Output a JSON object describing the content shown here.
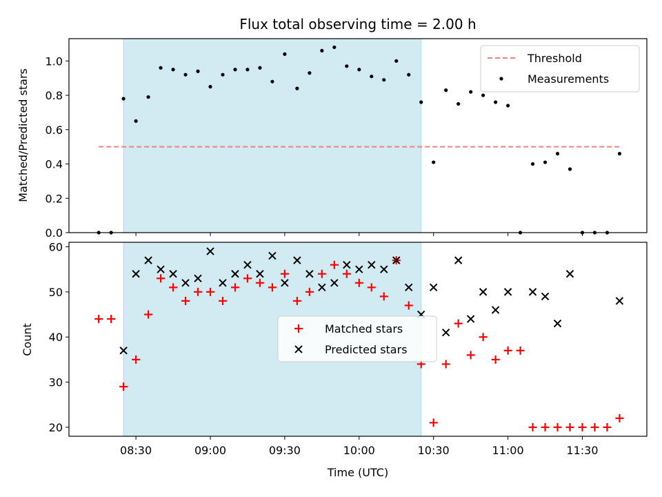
{
  "chart_data": [
    {
      "id": "top",
      "type": "scatter",
      "title": "Flux total observing time = 2.00 h",
      "ylabel": "Matched/Predicted stars",
      "xlabel": "",
      "x_unit": "minutes since 00:00 UTC",
      "xlim": [
        483,
        716
      ],
      "ylim": [
        0,
        1.13
      ],
      "yticks": [
        0.0,
        0.2,
        0.4,
        0.6,
        0.8,
        1.0
      ],
      "ytick_labels": [
        "0.0",
        "0.2",
        "0.4",
        "0.6",
        "0.8",
        "1.0"
      ],
      "xticks": [
        510,
        540,
        570,
        600,
        630,
        660,
        690
      ],
      "shaded_span": [
        505,
        625
      ],
      "colors": {
        "shade": "#add8e6",
        "threshold": "#f08080",
        "points": "#000000"
      },
      "legend": {
        "placement": "top-right",
        "threshold_label": "Threshold",
        "measurements_label": "Measurements"
      },
      "threshold": {
        "name": "Threshold",
        "y": 0.5,
        "x_range": [
          495,
          705
        ]
      },
      "series": [
        {
          "name": "Measurements",
          "x": [
            495,
            500,
            505,
            510,
            515,
            520,
            525,
            530,
            535,
            540,
            545,
            550,
            555,
            560,
            565,
            570,
            575,
            580,
            585,
            590,
            595,
            600,
            605,
            610,
            615,
            620,
            625,
            630,
            635,
            640,
            645,
            650,
            655,
            660,
            665,
            670,
            675,
            680,
            685,
            690,
            695,
            700,
            705
          ],
          "y": [
            0.0,
            0.0,
            0.78,
            0.65,
            0.79,
            0.96,
            0.95,
            0.92,
            0.94,
            0.85,
            0.92,
            0.95,
            0.95,
            0.96,
            0.88,
            1.04,
            0.84,
            0.93,
            1.06,
            1.08,
            0.97,
            0.95,
            0.91,
            0.89,
            1.0,
            0.92,
            0.76,
            0.41,
            0.83,
            0.75,
            0.82,
            0.8,
            0.76,
            0.74,
            0.0,
            0.4,
            0.41,
            0.46,
            0.37,
            0.0,
            0.0,
            0.0,
            0.46
          ]
        }
      ]
    },
    {
      "id": "bottom",
      "type": "scatter",
      "title": "",
      "ylabel": "Count",
      "xlabel": "Time (UTC)",
      "x_unit": "minutes since 00:00 UTC",
      "xlim": [
        483,
        716
      ],
      "ylim": [
        18,
        61
      ],
      "yticks": [
        20,
        30,
        40,
        50,
        60
      ],
      "ytick_labels": [
        "20",
        "30",
        "40",
        "50",
        "60"
      ],
      "xticks": [
        510,
        540,
        570,
        600,
        630,
        660,
        690
      ],
      "xtick_labels": [
        "08:30",
        "09:00",
        "09:30",
        "10:00",
        "10:30",
        "11:00",
        "11:30"
      ],
      "shaded_span": [
        505,
        625
      ],
      "colors": {
        "shade": "#add8e6",
        "matched": "#ff0000",
        "predicted": "#000000"
      },
      "legend": {
        "placement": "center",
        "matched_label": "Matched stars",
        "predicted_label": "Predicted stars"
      },
      "series": [
        {
          "name": "Matched stars",
          "marker": "plus",
          "x": [
            495,
            500,
            505,
            510,
            515,
            520,
            525,
            530,
            535,
            540,
            545,
            550,
            555,
            560,
            565,
            570,
            575,
            580,
            585,
            590,
            595,
            600,
            605,
            610,
            615,
            620,
            625,
            630,
            635,
            640,
            645,
            650,
            655,
            660,
            665,
            670,
            675,
            680,
            685,
            690,
            695,
            700,
            705
          ],
          "y": [
            44,
            44,
            29,
            35,
            45,
            53,
            51,
            48,
            50,
            50,
            48,
            51,
            53,
            52,
            51,
            54,
            48,
            50,
            54,
            56,
            54,
            52,
            51,
            49,
            57,
            47,
            34,
            21,
            34,
            43,
            36,
            40,
            35,
            37,
            37,
            20,
            20,
            20,
            20,
            20,
            20,
            20,
            22
          ]
        },
        {
          "name": "Predicted stars",
          "marker": "x",
          "x": [
            505,
            510,
            515,
            520,
            525,
            530,
            535,
            540,
            545,
            550,
            555,
            560,
            565,
            570,
            575,
            580,
            585,
            590,
            595,
            600,
            605,
            610,
            615,
            620,
            625,
            630,
            635,
            640,
            645,
            650,
            655,
            660,
            670,
            675,
            680,
            685,
            705
          ],
          "y": [
            37,
            54,
            57,
            55,
            54,
            52,
            53,
            59,
            52,
            54,
            56,
            54,
            58,
            52,
            57,
            54,
            51,
            52,
            56,
            55,
            56,
            55,
            57,
            51,
            45,
            51,
            41,
            57,
            44,
            50,
            46,
            50,
            50,
            49,
            43,
            54,
            48
          ]
        }
      ]
    }
  ]
}
